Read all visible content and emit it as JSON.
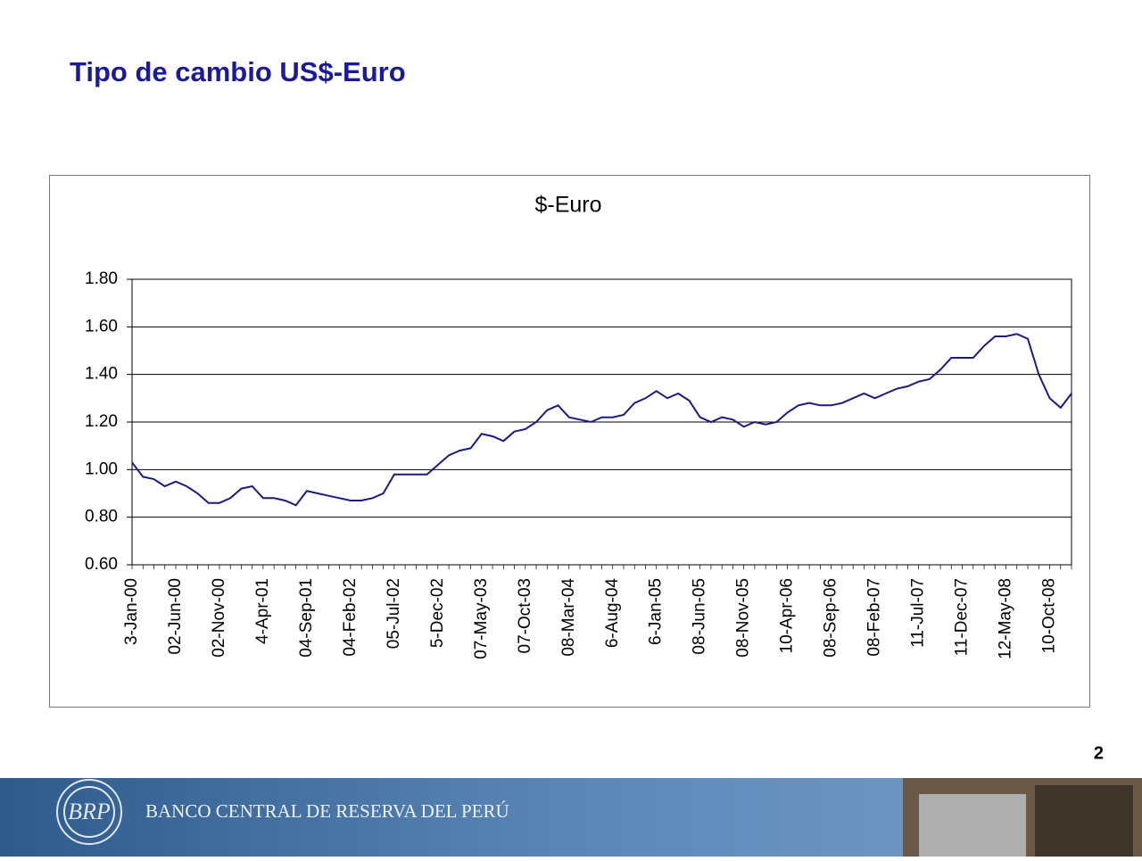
{
  "header": {
    "title": "Tipo de cambio US$-Euro"
  },
  "page_number": "2",
  "footer": {
    "text": "BANCO CENTRAL DE RESERVA DEL PERÚ"
  },
  "chart_data": {
    "type": "line",
    "title": "$-Euro",
    "categories": [
      "3-Jan-00",
      null,
      null,
      null,
      "02-Jun-00",
      null,
      null,
      null,
      "02-Nov-00",
      null,
      null,
      null,
      "4-Apr-01",
      null,
      null,
      null,
      "04-Sep-01",
      null,
      null,
      null,
      "04-Feb-02",
      null,
      null,
      null,
      "05-Jul-02",
      null,
      null,
      null,
      "5-Dec-02",
      null,
      null,
      null,
      "07-May-03",
      null,
      null,
      null,
      "07-Oct-03",
      null,
      null,
      null,
      "08-Mar-04",
      null,
      null,
      null,
      "6-Aug-04",
      null,
      null,
      null,
      "6-Jan-05",
      null,
      null,
      null,
      "08-Jun-05",
      null,
      null,
      null,
      "08-Nov-05",
      null,
      null,
      null,
      "10-Apr-06",
      null,
      null,
      null,
      "08-Sep-06",
      null,
      null,
      null,
      "08-Feb-07",
      null,
      null,
      null,
      "11-Jul-07",
      null,
      null,
      null,
      "11-Dec-07",
      null,
      null,
      null,
      "12-May-08",
      null,
      null,
      null,
      "10-Oct-08",
      null,
      null
    ],
    "values": [
      1.03,
      0.97,
      0.96,
      0.93,
      0.95,
      0.93,
      0.9,
      0.86,
      0.86,
      0.88,
      0.92,
      0.93,
      0.88,
      0.88,
      0.87,
      0.85,
      0.91,
      0.9,
      0.89,
      0.88,
      0.87,
      0.87,
      0.88,
      0.9,
      0.98,
      0.98,
      0.98,
      0.98,
      1.02,
      1.06,
      1.08,
      1.09,
      1.15,
      1.14,
      1.12,
      1.16,
      1.17,
      1.2,
      1.25,
      1.27,
      1.22,
      1.21,
      1.2,
      1.22,
      1.22,
      1.23,
      1.28,
      1.3,
      1.33,
      1.3,
      1.32,
      1.29,
      1.22,
      1.2,
      1.22,
      1.21,
      1.18,
      1.2,
      1.19,
      1.2,
      1.24,
      1.27,
      1.28,
      1.27,
      1.27,
      1.28,
      1.3,
      1.32,
      1.3,
      1.32,
      1.34,
      1.35,
      1.37,
      1.38,
      1.42,
      1.47,
      1.47,
      1.47,
      1.52,
      1.56,
      1.56,
      1.57,
      1.55,
      1.4,
      1.3,
      1.26,
      1.32
    ],
    "color": "#1a1a80",
    "ylim": [
      0.6,
      1.8
    ],
    "yticks": [
      {
        "value": 0.6,
        "label": "0.60"
      },
      {
        "value": 0.8,
        "label": "0.80"
      },
      {
        "value": 1.0,
        "label": "1.00"
      },
      {
        "value": 1.2,
        "label": "1.20"
      },
      {
        "value": 1.4,
        "label": "1.40"
      },
      {
        "value": 1.6,
        "label": "1.60"
      },
      {
        "value": 1.8,
        "label": "1.80"
      }
    ],
    "grid": true
  }
}
